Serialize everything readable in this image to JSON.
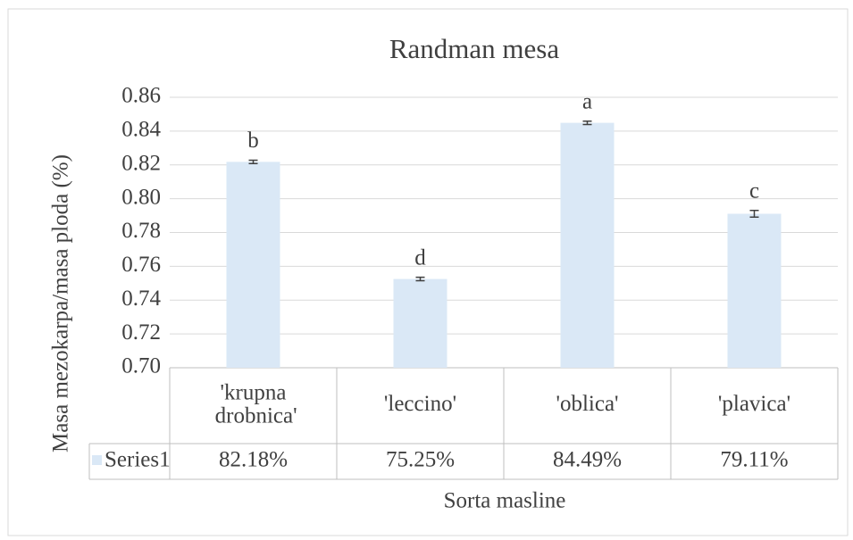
{
  "chart_data": {
    "type": "bar",
    "title": "Randman mesa",
    "xlabel": "Sorta masline",
    "ylabel": "Masa mezokarpa/masa ploda (%)",
    "categories": [
      "'krupna drobnica'",
      "'leccino'",
      "'oblica'",
      "'plavica'"
    ],
    "series": [
      {
        "name": "Series1",
        "color": "#dae8f6",
        "values": [
          0.8218,
          0.7525,
          0.8449,
          0.7911
        ],
        "value_labels": [
          "82.18%",
          "75.25%",
          "84.49%",
          "79.11%"
        ],
        "errors": [
          0.001,
          0.001,
          0.001,
          0.002
        ]
      }
    ],
    "annotations": [
      "b",
      "d",
      "a",
      "c"
    ],
    "ylim": [
      0.7,
      0.86
    ],
    "yticks": [
      {
        "value": 0.7,
        "label": "0.70"
      },
      {
        "value": 0.72,
        "label": "0.72"
      },
      {
        "value": 0.74,
        "label": "0.74"
      },
      {
        "value": 0.76,
        "label": "0.76"
      },
      {
        "value": 0.78,
        "label": "0.78"
      },
      {
        "value": 0.8,
        "label": "0.80"
      },
      {
        "value": 0.82,
        "label": "0.82"
      },
      {
        "value": 0.84,
        "label": "0.84"
      },
      {
        "value": 0.86,
        "label": "0.86"
      }
    ],
    "grid": true
  }
}
